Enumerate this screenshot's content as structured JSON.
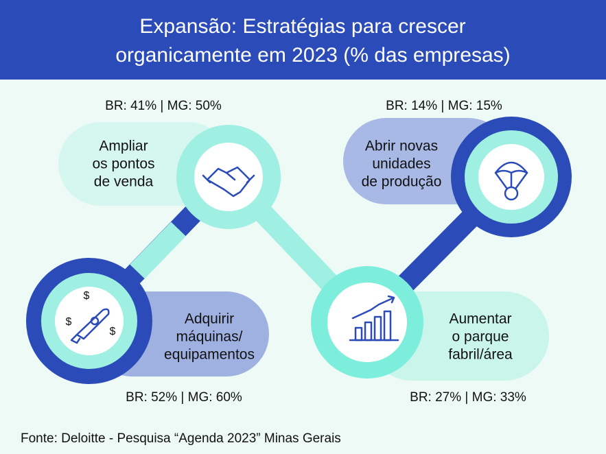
{
  "header": {
    "title": [
      "Expansão: Estratégias para crescer",
      "organicamente em 2023 (% das empresas)"
    ]
  },
  "nodes": [
    {
      "label": [
        "Ampliar",
        "os pontos",
        "de venda"
      ],
      "stat": "BR: 41% | MG: 50%"
    },
    {
      "label": [
        "Abrir novas",
        "unidades",
        "de produção"
      ],
      "stat": "BR: 14% | MG: 15%"
    },
    {
      "label": [
        "Adquirir",
        "máquinas/",
        "equipamentos"
      ],
      "stat": "BR: 52% | MG: 60%"
    },
    {
      "label": [
        "Aumentar",
        "o parque",
        "fabril/área"
      ],
      "stat": "BR: 27% | MG: 33%"
    }
  ],
  "footer": {
    "source": "Fonte: Deloitte - Pesquisa “Agenda 2023” Minas Gerais"
  }
}
